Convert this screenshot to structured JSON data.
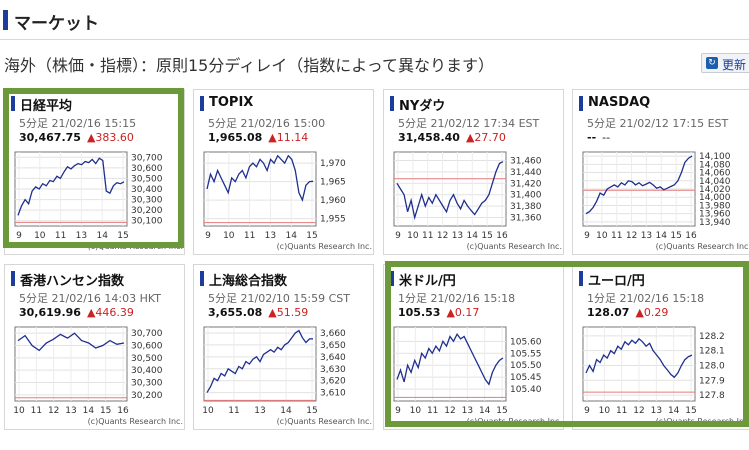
{
  "header": {
    "title": "マーケット"
  },
  "subhead": "海外（株価・指標）：原則15分ディレイ（指数によって異なります）",
  "update_button": {
    "label": "更新"
  },
  "copyright": "(c)Quants Research Inc.",
  "cards": [
    {
      "title": "日経平均",
      "time": "5分足 21/02/16 15:15",
      "value": "30,467.75",
      "change": "▲383.60",
      "chart_data": {
        "type": "line",
        "y_ticks": [
          "30,700",
          "30,600",
          "30,500",
          "30,400",
          "30,300",
          "30,200",
          "30,100"
        ],
        "x_ticks": [
          "9",
          "10",
          "11",
          "13",
          "14",
          "15"
        ],
        "ylim": [
          30050,
          30750
        ],
        "ref": 30084,
        "x": [
          0,
          1,
          2,
          3,
          4,
          5,
          6,
          7,
          8,
          9,
          10,
          11,
          12,
          13,
          14,
          15,
          16,
          17,
          18,
          19,
          20,
          21,
          22,
          23,
          24,
          25,
          26,
          27,
          28,
          29,
          30
        ],
        "values": [
          30150,
          30240,
          30300,
          30260,
          30380,
          30420,
          30400,
          30450,
          30430,
          30480,
          30470,
          30520,
          30500,
          30560,
          30610,
          30590,
          30620,
          30640,
          30630,
          30660,
          30650,
          30680,
          30640,
          30690,
          30670,
          30380,
          30360,
          30430,
          30460,
          30450,
          30468
        ]
      }
    },
    {
      "title": "TOPIX",
      "time": "5分足 21/02/16 15:00",
      "value": "1,965.08",
      "change": "▲11.14",
      "chart_data": {
        "type": "line",
        "y_ticks": [
          "1,970",
          "1,965",
          "1,960",
          "1,955"
        ],
        "x_ticks": [
          "9",
          "10",
          "11",
          "13",
          "14",
          "15"
        ],
        "ylim": [
          1953,
          1973
        ],
        "ref": 1953.9,
        "x": [
          0,
          1,
          2,
          3,
          4,
          5,
          6,
          7,
          8,
          9,
          10,
          11,
          12,
          13,
          14,
          15,
          16,
          17,
          18,
          19,
          20,
          21,
          22,
          23,
          24,
          25,
          26,
          27,
          28,
          29,
          30
        ],
        "values": [
          1963,
          1967,
          1965,
          1968,
          1966,
          1964,
          1962,
          1966,
          1965,
          1967,
          1968,
          1966,
          1969,
          1970,
          1969,
          1971,
          1970,
          1968,
          1971,
          1970,
          1972,
          1971,
          1970,
          1972,
          1971,
          1968,
          1962,
          1960,
          1964,
          1965,
          1965.08
        ]
      }
    },
    {
      "title": "NYダウ",
      "time": "5分足 21/02/12 17:34 EST",
      "value": "31,458.40",
      "change": "▲27.70",
      "chart_data": {
        "type": "line",
        "y_ticks": [
          "31,460",
          "31,440",
          "31,420",
          "31,400",
          "31,380",
          "31,360"
        ],
        "x_ticks": [
          "9",
          "10",
          "11",
          "12",
          "13",
          "14",
          "15",
          "16"
        ],
        "ylim": [
          31345,
          31475
        ],
        "ref": 31428,
        "x": [
          0,
          1,
          2,
          3,
          4,
          5,
          6,
          7,
          8,
          9,
          10,
          11,
          12,
          13,
          14,
          15,
          16,
          17,
          18,
          19,
          20,
          21,
          22,
          23,
          24,
          25,
          26,
          27,
          28,
          29,
          30
        ],
        "values": [
          31420,
          31410,
          31400,
          31370,
          31390,
          31360,
          31380,
          31400,
          31380,
          31395,
          31385,
          31400,
          31390,
          31380,
          31370,
          31390,
          31400,
          31385,
          31375,
          31390,
          31380,
          31372,
          31365,
          31375,
          31385,
          31390,
          31400,
          31420,
          31440,
          31455,
          31458
        ]
      }
    },
    {
      "title": "NASDAQ",
      "time": "5分足 21/02/12 17:15 EST",
      "value": "--",
      "change": "--",
      "chart_data": {
        "type": "line",
        "y_ticks": [
          "14,100",
          "14,080",
          "14,060",
          "14,040",
          "14,020",
          "14,000",
          "13,980",
          "13,960",
          "13,940"
        ],
        "x_ticks": [
          "9",
          "10",
          "11",
          "12",
          "13",
          "14",
          "15",
          "16"
        ],
        "ylim": [
          13930,
          14110
        ],
        "ref": 14017,
        "x": [
          0,
          1,
          2,
          3,
          4,
          5,
          6,
          7,
          8,
          9,
          10,
          11,
          12,
          13,
          14,
          15,
          16,
          17,
          18,
          19,
          20,
          21,
          22,
          23,
          24,
          25,
          26,
          27,
          28,
          29,
          30
        ],
        "values": [
          13960,
          13965,
          13975,
          13990,
          14010,
          14005,
          14020,
          14025,
          14030,
          14025,
          14035,
          14030,
          14040,
          14038,
          14030,
          14035,
          14028,
          14032,
          14036,
          14030,
          14022,
          14025,
          14018,
          14022,
          14026,
          14030,
          14040,
          14060,
          14085,
          14095,
          14100
        ]
      }
    },
    {
      "title": "香港ハンセン指数",
      "time": "5分足 21/02/16 14:03 HKT",
      "value": "30,619.96",
      "change": "▲446.39",
      "chart_data": {
        "type": "line",
        "y_ticks": [
          "30,700",
          "30,600",
          "30,500",
          "30,400",
          "30,300",
          "30,200"
        ],
        "x_ticks": [
          "10",
          "11",
          "12",
          "13",
          "14",
          "15",
          "16"
        ],
        "ylim": [
          30150,
          30750
        ],
        "ref": 30176,
        "x": [
          0,
          1,
          2,
          3,
          4,
          5,
          6,
          7,
          8,
          9,
          10,
          11,
          12,
          13,
          14,
          15
        ],
        "values": [
          30640,
          30680,
          30600,
          30560,
          30620,
          30650,
          30690,
          30660,
          30700,
          30640,
          30620,
          30580,
          30600,
          30640,
          30610,
          30620
        ]
      }
    },
    {
      "title": "上海総合指数",
      "time": "5分足 21/02/10 15:59 CST",
      "value": "3,655.08",
      "change": "▲51.59",
      "chart_data": {
        "type": "line",
        "y_ticks": [
          "3,660",
          "3,650",
          "3,640",
          "3,630",
          "3,620",
          "3,610"
        ],
        "x_ticks": [
          "10",
          "11",
          "13",
          "14",
          "15"
        ],
        "ylim": [
          3603,
          3665
        ],
        "ref": 3603.5,
        "x": [
          0,
          1,
          2,
          3,
          4,
          5,
          6,
          7,
          8,
          9,
          10,
          11,
          12,
          13,
          14,
          15,
          16,
          17,
          18,
          19,
          20,
          21,
          22,
          23,
          24,
          25,
          26,
          27,
          28,
          29,
          30
        ],
        "values": [
          3610,
          3615,
          3622,
          3620,
          3626,
          3624,
          3630,
          3628,
          3626,
          3632,
          3630,
          3636,
          3634,
          3638,
          3640,
          3636,
          3642,
          3644,
          3646,
          3644,
          3648,
          3646,
          3650,
          3652,
          3656,
          3660,
          3662,
          3656,
          3652,
          3655,
          3655.08
        ]
      }
    },
    {
      "title": "米ドル/円",
      "time": "1分足 21/02/16 15:18",
      "value": "105.53",
      "change": "▲0.17",
      "chart_data": {
        "type": "line",
        "y_ticks": [
          "105.60",
          "105.55",
          "105.50",
          "105.45",
          "105.40"
        ],
        "x_ticks": [
          "9",
          "10",
          "11",
          "12",
          "13",
          "14",
          "15"
        ],
        "ylim": [
          105.35,
          105.66
        ],
        "ref": 105.365,
        "x": [
          0,
          1,
          2,
          3,
          4,
          5,
          6,
          7,
          8,
          9,
          10,
          11,
          12,
          13,
          14,
          15,
          16,
          17,
          18,
          19,
          20,
          21,
          22,
          23,
          24,
          25,
          26,
          27,
          28,
          29,
          30
        ],
        "values": [
          105.44,
          105.48,
          105.43,
          105.5,
          105.47,
          105.52,
          105.49,
          105.55,
          105.53,
          105.57,
          105.55,
          105.58,
          105.56,
          105.6,
          105.58,
          105.62,
          105.6,
          105.63,
          105.61,
          105.62,
          105.59,
          105.56,
          105.53,
          105.5,
          105.47,
          105.44,
          105.42,
          105.47,
          105.5,
          105.52,
          105.53
        ]
      }
    },
    {
      "title": "ユーロ/円",
      "time": "1分足 21/02/16 15:18",
      "value": "128.07",
      "change": "▲0.29",
      "chart_data": {
        "type": "line",
        "y_ticks": [
          "128.2",
          "128.1",
          "128.0",
          "127.9",
          "127.8"
        ],
        "x_ticks": [
          "9",
          "10",
          "11",
          "12",
          "13",
          "14",
          "15"
        ],
        "ylim": [
          127.76,
          128.26
        ],
        "ref": 127.82,
        "x": [
          0,
          1,
          2,
          3,
          4,
          5,
          6,
          7,
          8,
          9,
          10,
          11,
          12,
          13,
          14,
          15,
          16,
          17,
          18,
          19,
          20,
          21,
          22,
          23,
          24,
          25,
          26,
          27,
          28,
          29,
          30
        ],
        "values": [
          127.95,
          128.0,
          127.96,
          128.04,
          128.02,
          128.07,
          128.05,
          128.1,
          128.08,
          128.13,
          128.11,
          128.16,
          128.14,
          128.17,
          128.15,
          128.18,
          128.16,
          128.13,
          128.15,
          128.1,
          128.07,
          128.04,
          128.0,
          127.97,
          127.94,
          127.92,
          127.95,
          128.0,
          128.04,
          128.06,
          128.07
        ]
      }
    }
  ]
}
